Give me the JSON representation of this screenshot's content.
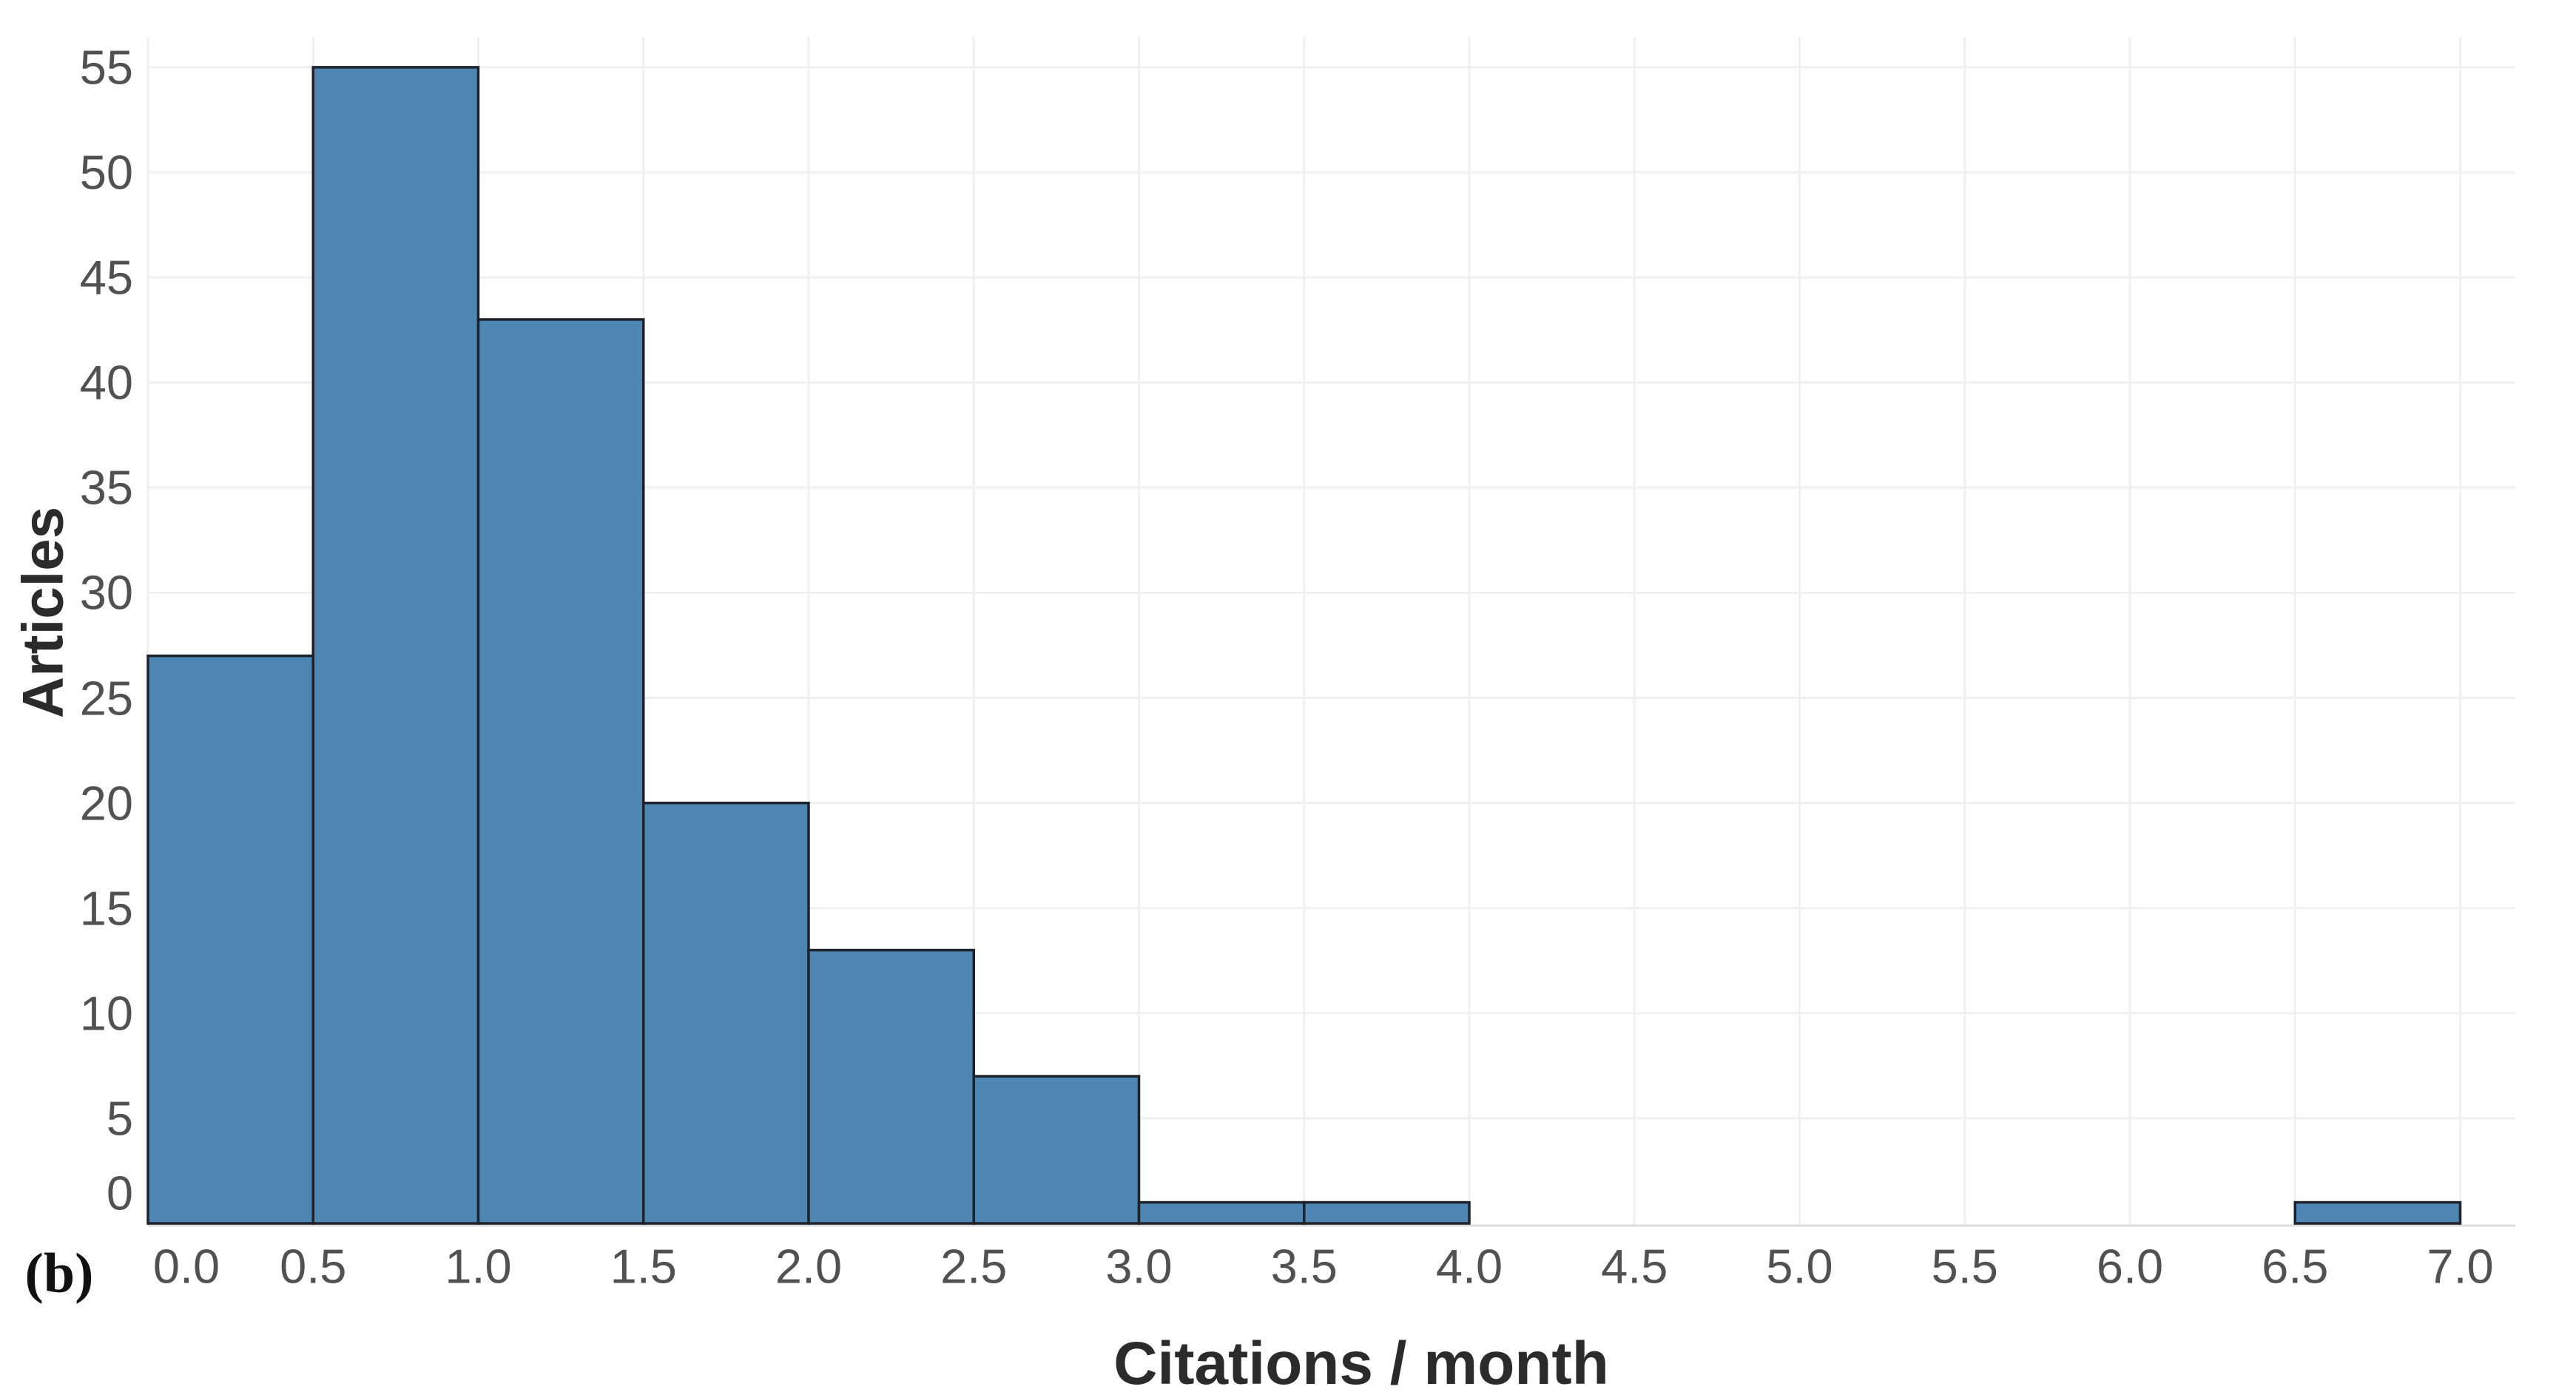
{
  "panel_label": "(b)",
  "chart_data": {
    "type": "bar",
    "subtype": "histogram",
    "title": "",
    "xlabel": "Citations / month",
    "ylabel": "Articles",
    "bin_width": 0.5,
    "bin_edges": [
      0.0,
      0.5,
      1.0,
      1.5,
      2.0,
      2.5,
      3.0,
      3.5,
      4.0,
      4.5,
      5.0,
      5.5,
      6.0,
      6.5,
      7.0
    ],
    "values": [
      27,
      55,
      43,
      20,
      13,
      7,
      1,
      1,
      0,
      0,
      0,
      0,
      0,
      1
    ],
    "x_tick_labels": [
      "0.0",
      "0.5",
      "1.0",
      "1.5",
      "2.0",
      "2.5",
      "3.0",
      "3.5",
      "4.0",
      "4.5",
      "5.0",
      "5.5",
      "6.0",
      "6.5",
      "7.0"
    ],
    "x_tick_values": [
      0.0,
      0.5,
      1.0,
      1.5,
      2.0,
      2.5,
      3.0,
      3.5,
      4.0,
      4.5,
      5.0,
      5.5,
      6.0,
      6.5,
      7.0
    ],
    "y_tick_labels": [
      "0",
      "5",
      "10",
      "15",
      "20",
      "25",
      "30",
      "35",
      "40",
      "45",
      "50",
      "55"
    ],
    "y_tick_values": [
      0,
      5,
      10,
      15,
      20,
      25,
      30,
      35,
      40,
      45,
      50,
      55
    ],
    "xlim": [
      0.0,
      7.17
    ],
    "ylim": [
      0,
      56.5
    ],
    "grid": true,
    "legend": "none",
    "colors": {
      "bar_fill": "#4d86b2",
      "bar_border": "#1e222a",
      "gridline": "#f0f0f0",
      "axis_line": "#dcdcdc",
      "tick_text": "#515151",
      "title_text": "#2b2b2b",
      "background": "#ffffff"
    }
  }
}
